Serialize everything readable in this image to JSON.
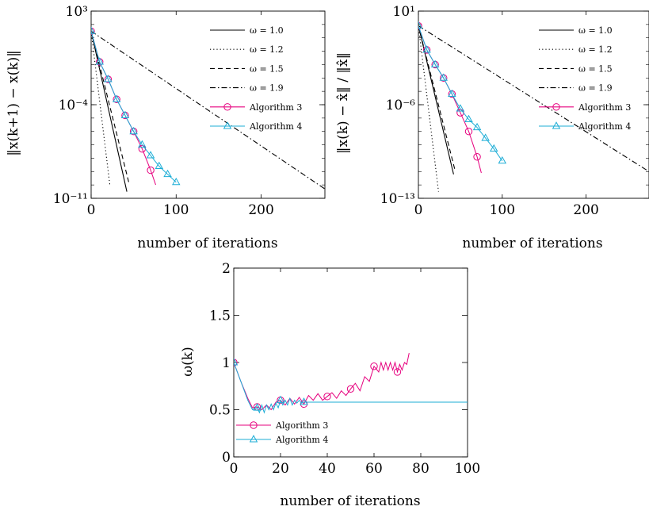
{
  "chart_data": [
    {
      "type": "line",
      "xlabel": "number of iterations",
      "ylabel": "‖x(k+1) − x(k)‖",
      "yscale": "log",
      "xlim": [
        0,
        275
      ],
      "ylim_exp": [
        -11,
        3
      ],
      "xticks": [
        0,
        100,
        200
      ],
      "yticks": [
        {
          "exp": 3,
          "label": "10³"
        },
        {
          "exp": -4,
          "label": "10⁻⁴"
        },
        {
          "exp": -11,
          "label": "10⁻¹¹"
        }
      ],
      "legend_position": "top-right",
      "series": [
        {
          "name": "ω = 1.0",
          "style": "solid",
          "color": "#000000",
          "marker": "none",
          "points": [
            [
              0,
              1.5
            ],
            [
              42,
              -10.5
            ]
          ]
        },
        {
          "name": "ω = 1.2",
          "style": "dotted",
          "color": "#000000",
          "marker": "none",
          "points": [
            [
              0,
              1.5
            ],
            [
              22,
              -10.0
            ]
          ]
        },
        {
          "name": "ω = 1.5",
          "style": "dashed",
          "color": "#000000",
          "marker": "none",
          "points": [
            [
              0,
              1.5
            ],
            [
              45,
              -10.0
            ]
          ]
        },
        {
          "name": "ω = 1.9",
          "style": "dashdot",
          "color": "#000000",
          "marker": "none",
          "points": [
            [
              0,
              1.5
            ],
            [
              275,
              -10.3
            ]
          ]
        },
        {
          "name": "Algorithm 3",
          "style": "solid",
          "color": "#e6007e",
          "marker": "circle",
          "points": [
            [
              0,
              1.5
            ],
            [
              10,
              -0.8
            ],
            [
              20,
              -2.1
            ],
            [
              30,
              -3.6
            ],
            [
              40,
              -4.8
            ],
            [
              50,
              -6.0
            ],
            [
              60,
              -7.3
            ],
            [
              70,
              -8.9
            ],
            [
              76,
              -10.0
            ]
          ],
          "marked": [
            [
              0,
              1.5
            ],
            [
              10,
              -0.8
            ],
            [
              20,
              -2.1
            ],
            [
              30,
              -3.6
            ],
            [
              40,
              -4.8
            ],
            [
              50,
              -6.0
            ],
            [
              60,
              -7.3
            ],
            [
              70,
              -8.9
            ]
          ]
        },
        {
          "name": "Algorithm 4",
          "style": "solid",
          "color": "#1cadd6",
          "marker": "triangle",
          "points": [
            [
              0,
              1.5
            ],
            [
              10,
              -0.8
            ],
            [
              20,
              -2.1
            ],
            [
              30,
              -3.6
            ],
            [
              40,
              -4.8
            ],
            [
              50,
              -6.0
            ],
            [
              60,
              -7.0
            ],
            [
              70,
              -7.8
            ],
            [
              80,
              -8.6
            ],
            [
              90,
              -9.2
            ],
            [
              100,
              -9.8
            ]
          ],
          "marked": [
            [
              0,
              1.5
            ],
            [
              10,
              -0.8
            ],
            [
              20,
              -2.1
            ],
            [
              30,
              -3.6
            ],
            [
              40,
              -4.8
            ],
            [
              50,
              -6.0
            ],
            [
              60,
              -7.0
            ],
            [
              70,
              -7.8
            ],
            [
              80,
              -8.6
            ],
            [
              90,
              -9.2
            ],
            [
              100,
              -9.8
            ]
          ]
        }
      ]
    },
    {
      "type": "line",
      "xlabel": "number of iterations",
      "ylabel": "‖x(k) − x̂‖ / ‖x̂‖",
      "yscale": "log",
      "xlim": [
        0,
        275
      ],
      "ylim_exp": [
        -13,
        1
      ],
      "xticks": [
        0,
        100,
        200
      ],
      "yticks": [
        {
          "exp": 1,
          "label": "10¹"
        },
        {
          "exp": -6,
          "label": "10⁻⁶"
        },
        {
          "exp": -13,
          "label": "10⁻¹³"
        }
      ],
      "legend_position": "top-right",
      "series": [
        {
          "name": "ω = 1.0",
          "style": "solid",
          "color": "#000000",
          "marker": "none",
          "points": [
            [
              0,
              -0.1
            ],
            [
              42,
              -11.2
            ]
          ]
        },
        {
          "name": "ω = 1.2",
          "style": "dotted",
          "color": "#000000",
          "marker": "none",
          "points": [
            [
              0,
              -0.1
            ],
            [
              24,
              -12.5
            ]
          ]
        },
        {
          "name": "ω = 1.5",
          "style": "dashed",
          "color": "#000000",
          "marker": "none",
          "points": [
            [
              0,
              -0.1
            ],
            [
              44,
              -11.0
            ]
          ]
        },
        {
          "name": "ω = 1.9",
          "style": "dashdot",
          "color": "#000000",
          "marker": "none",
          "points": [
            [
              0,
              -0.1
            ],
            [
              275,
              -11.0
            ]
          ]
        },
        {
          "name": "Algorithm 3",
          "style": "solid",
          "color": "#e6007e",
          "marker": "circle",
          "points": [
            [
              0,
              -0.1
            ],
            [
              10,
              -1.9
            ],
            [
              20,
              -3.0
            ],
            [
              30,
              -4.0
            ],
            [
              40,
              -5.2
            ],
            [
              50,
              -6.6
            ],
            [
              60,
              -8.0
            ],
            [
              70,
              -9.9
            ],
            [
              75,
              -11.1
            ]
          ],
          "marked": [
            [
              0,
              -0.1
            ],
            [
              10,
              -1.9
            ],
            [
              20,
              -3.0
            ],
            [
              30,
              -4.0
            ],
            [
              40,
              -5.2
            ],
            [
              50,
              -6.6
            ],
            [
              60,
              -8.0
            ],
            [
              70,
              -9.9
            ]
          ]
        },
        {
          "name": "Algorithm 4",
          "style": "solid",
          "color": "#1cadd6",
          "marker": "triangle",
          "points": [
            [
              0,
              -0.1
            ],
            [
              10,
              -1.9
            ],
            [
              20,
              -3.0
            ],
            [
              30,
              -4.0
            ],
            [
              40,
              -5.2
            ],
            [
              50,
              -6.3
            ],
            [
              60,
              -7.1
            ],
            [
              70,
              -7.7
            ],
            [
              80,
              -8.5
            ],
            [
              90,
              -9.3
            ],
            [
              100,
              -10.2
            ]
          ],
          "marked": [
            [
              0,
              -0.1
            ],
            [
              10,
              -1.9
            ],
            [
              20,
              -3.0
            ],
            [
              30,
              -4.0
            ],
            [
              40,
              -5.2
            ],
            [
              50,
              -6.3
            ],
            [
              60,
              -7.1
            ],
            [
              70,
              -7.7
            ],
            [
              80,
              -8.5
            ],
            [
              90,
              -9.3
            ],
            [
              100,
              -10.2
            ]
          ]
        }
      ]
    },
    {
      "type": "line",
      "xlabel": "number of iterations",
      "ylabel": "ω(k)",
      "yscale": "linear",
      "xlim": [
        0,
        100
      ],
      "ylim": [
        0,
        2
      ],
      "xticks": [
        0,
        20,
        40,
        60,
        80,
        100
      ],
      "yticks": [
        {
          "value": 0,
          "label": "0"
        },
        {
          "value": 0.5,
          "label": "0.5"
        },
        {
          "value": 1,
          "label": "1"
        },
        {
          "value": 1.5,
          "label": "1.5"
        },
        {
          "value": 2,
          "label": "2"
        }
      ],
      "legend_position": "bottom-left",
      "series": [
        {
          "name": "Algorithm 3",
          "style": "solid",
          "color": "#e6007e",
          "marker": "circle",
          "points": [
            [
              0,
              1.0
            ],
            [
              3,
              0.8
            ],
            [
              6,
              0.62
            ],
            [
              8,
              0.52
            ],
            [
              10,
              0.53
            ],
            [
              12,
              0.5
            ],
            [
              14,
              0.55
            ],
            [
              16,
              0.5
            ],
            [
              18,
              0.58
            ],
            [
              20,
              0.6
            ],
            [
              22,
              0.55
            ],
            [
              24,
              0.62
            ],
            [
              26,
              0.56
            ],
            [
              28,
              0.63
            ],
            [
              30,
              0.56
            ],
            [
              32,
              0.65
            ],
            [
              34,
              0.6
            ],
            [
              36,
              0.67
            ],
            [
              38,
              0.6
            ],
            [
              40,
              0.64
            ],
            [
              42,
              0.68
            ],
            [
              44,
              0.62
            ],
            [
              46,
              0.7
            ],
            [
              48,
              0.65
            ],
            [
              50,
              0.72
            ],
            [
              52,
              0.78
            ],
            [
              54,
              0.7
            ],
            [
              56,
              0.85
            ],
            [
              58,
              0.8
            ],
            [
              60,
              0.96
            ],
            [
              62,
              0.9
            ],
            [
              63,
              1.0
            ],
            [
              64,
              0.92
            ],
            [
              65,
              1.0
            ],
            [
              66,
              0.92
            ],
            [
              67,
              1.0
            ],
            [
              68,
              0.92
            ],
            [
              69,
              1.0
            ],
            [
              70,
              0.9
            ],
            [
              71,
              0.98
            ],
            [
              72,
              0.92
            ],
            [
              73,
              1.0
            ],
            [
              74,
              0.98
            ],
            [
              75,
              1.1
            ]
          ],
          "marked": [
            [
              0,
              1.0
            ],
            [
              10,
              0.53
            ],
            [
              20,
              0.6
            ],
            [
              30,
              0.56
            ],
            [
              40,
              0.64
            ],
            [
              50,
              0.72
            ],
            [
              60,
              0.96
            ],
            [
              70,
              0.9
            ]
          ]
        },
        {
          "name": "Algorithm 4",
          "style": "solid",
          "color": "#1cadd6",
          "marker": "triangle",
          "points": [
            [
              0,
              1.0
            ],
            [
              3,
              0.8
            ],
            [
              6,
              0.6
            ],
            [
              8,
              0.5
            ],
            [
              10,
              0.52
            ],
            [
              11,
              0.47
            ],
            [
              12,
              0.55
            ],
            [
              13,
              0.47
            ],
            [
              14,
              0.55
            ],
            [
              15,
              0.5
            ],
            [
              16,
              0.56
            ],
            [
              17,
              0.5
            ],
            [
              18,
              0.57
            ],
            [
              19,
              0.52
            ],
            [
              20,
              0.6
            ],
            [
              21,
              0.55
            ],
            [
              22,
              0.6
            ],
            [
              23,
              0.55
            ],
            [
              24,
              0.62
            ],
            [
              25,
              0.55
            ],
            [
              26,
              0.6
            ],
            [
              27,
              0.57
            ],
            [
              28,
              0.6
            ],
            [
              29,
              0.57
            ],
            [
              30,
              0.58
            ],
            [
              100,
              0.58
            ]
          ],
          "marked": [
            [
              0,
              1.0
            ],
            [
              10,
              0.52
            ],
            [
              20,
              0.6
            ],
            [
              30,
              0.58
            ]
          ]
        }
      ]
    }
  ]
}
